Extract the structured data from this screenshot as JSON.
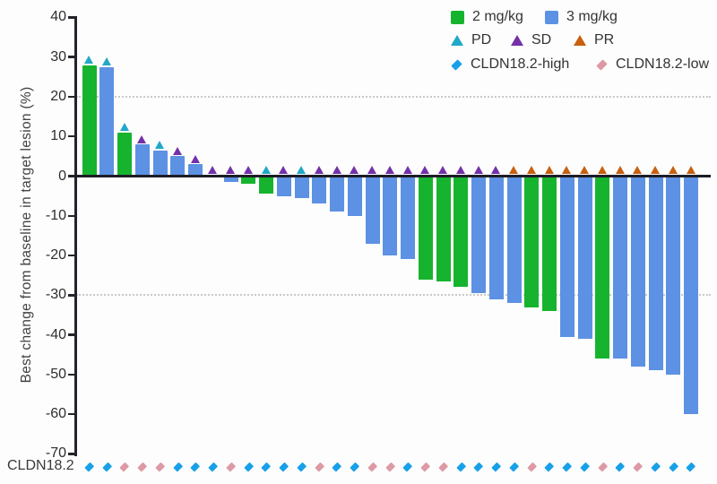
{
  "colors": {
    "dose_2mg_green": "#16b42e",
    "dose_3mg_blue": "#5d91e3",
    "pd_teal": "#20a8c8",
    "sd_purple": "#7331a8",
    "pr_orange": "#c8600f",
    "cldn_high_blue": "#18a0e8",
    "cldn_low_pink": "#dd9aa5",
    "axis": "#23232b",
    "grid": "#c9c9c9",
    "text": "#333333"
  },
  "chart_data": {
    "type": "bar",
    "subtype": "waterfall",
    "title": "",
    "xlabel": "",
    "ylabel": "Best change from baseline in target lesion (%)",
    "ylim": [
      -70,
      40
    ],
    "yticks": [
      40,
      30,
      20,
      10,
      0,
      -10,
      -20,
      -30,
      -40,
      -50,
      -60,
      -70
    ],
    "dotted_gridlines_at": [
      20,
      -30
    ],
    "legend_position": "top-right",
    "bottom_row_label": "CLDN18.2",
    "legend": {
      "rows": [
        {
          "items": [
            {
              "label": "2 mg/kg",
              "marker": "square",
              "color_key": "dose_2mg_green"
            },
            {
              "label": "3 mg/kg",
              "marker": "square",
              "color_key": "dose_3mg_blue"
            }
          ]
        },
        {
          "items": [
            {
              "label": "PD",
              "marker": "triangle",
              "color_key": "pd_teal"
            },
            {
              "label": "SD",
              "marker": "triangle",
              "color_key": "sd_purple"
            },
            {
              "label": "PR",
              "marker": "triangle",
              "color_key": "pr_orange"
            }
          ]
        },
        {
          "items": [
            {
              "label": "CLDN18.2-high",
              "marker": "diamond",
              "color_key": "cldn_high_blue"
            },
            {
              "label": "CLDN18.2-low",
              "marker": "diamond",
              "color_key": "cldn_low_pink"
            }
          ]
        }
      ]
    },
    "series": [
      {
        "name": "2 mg/kg",
        "color_key": "dose_2mg_green"
      },
      {
        "name": "3 mg/kg",
        "color_key": "dose_3mg_blue"
      }
    ],
    "patients": [
      {
        "value": 28,
        "dose": "2 mg/kg",
        "response": "PD",
        "cldn18_2": "high"
      },
      {
        "value": 27.5,
        "dose": "3 mg/kg",
        "response": "PD",
        "cldn18_2": "high"
      },
      {
        "value": 11,
        "dose": "2 mg/kg",
        "response": "PD",
        "cldn18_2": "low"
      },
      {
        "value": 8,
        "dose": "3 mg/kg",
        "response": "SD",
        "cldn18_2": "low"
      },
      {
        "value": 6.5,
        "dose": "3 mg/kg",
        "response": "PD",
        "cldn18_2": "low"
      },
      {
        "value": 5,
        "dose": "3 mg/kg",
        "response": "SD",
        "cldn18_2": "high"
      },
      {
        "value": 3,
        "dose": "3 mg/kg",
        "response": "SD",
        "cldn18_2": "high"
      },
      {
        "value": 0,
        "dose": "3 mg/kg",
        "response": "SD",
        "cldn18_2": "high"
      },
      {
        "value": -1.5,
        "dose": "3 mg/kg",
        "response": "SD",
        "cldn18_2": "low"
      },
      {
        "value": -2,
        "dose": "2 mg/kg",
        "response": "SD",
        "cldn18_2": "high"
      },
      {
        "value": -4.5,
        "dose": "2 mg/kg",
        "response": "PD",
        "cldn18_2": "high"
      },
      {
        "value": -5,
        "dose": "3 mg/kg",
        "response": "SD",
        "cldn18_2": "high"
      },
      {
        "value": -5.5,
        "dose": "3 mg/kg",
        "response": "PD",
        "cldn18_2": "high"
      },
      {
        "value": -7,
        "dose": "3 mg/kg",
        "response": "SD",
        "cldn18_2": "low"
      },
      {
        "value": -9,
        "dose": "3 mg/kg",
        "response": "SD",
        "cldn18_2": "high"
      },
      {
        "value": -10,
        "dose": "3 mg/kg",
        "response": "SD",
        "cldn18_2": "high"
      },
      {
        "value": -17,
        "dose": "3 mg/kg",
        "response": "SD",
        "cldn18_2": "low"
      },
      {
        "value": -20,
        "dose": "3 mg/kg",
        "response": "SD",
        "cldn18_2": "low"
      },
      {
        "value": -21,
        "dose": "3 mg/kg",
        "response": "SD",
        "cldn18_2": "high"
      },
      {
        "value": -26,
        "dose": "2 mg/kg",
        "response": "SD",
        "cldn18_2": "low"
      },
      {
        "value": -26.5,
        "dose": "2 mg/kg",
        "response": "SD",
        "cldn18_2": "low"
      },
      {
        "value": -28,
        "dose": "2 mg/kg",
        "response": "SD",
        "cldn18_2": "high"
      },
      {
        "value": -29.5,
        "dose": "3 mg/kg",
        "response": "SD",
        "cldn18_2": "high"
      },
      {
        "value": -31,
        "dose": "3 mg/kg",
        "response": "SD",
        "cldn18_2": "high"
      },
      {
        "value": -32,
        "dose": "3 mg/kg",
        "response": "PR",
        "cldn18_2": "high"
      },
      {
        "value": -33,
        "dose": "2 mg/kg",
        "response": "PR",
        "cldn18_2": "low"
      },
      {
        "value": -34,
        "dose": "2 mg/kg",
        "response": "PR",
        "cldn18_2": "high"
      },
      {
        "value": -40.5,
        "dose": "3 mg/kg",
        "response": "PR",
        "cldn18_2": "high"
      },
      {
        "value": -41,
        "dose": "3 mg/kg",
        "response": "PR",
        "cldn18_2": "high"
      },
      {
        "value": -46,
        "dose": "2 mg/kg",
        "response": "PR",
        "cldn18_2": "low"
      },
      {
        "value": -46,
        "dose": "3 mg/kg",
        "response": "PR",
        "cldn18_2": "high"
      },
      {
        "value": -48,
        "dose": "3 mg/kg",
        "response": "PR",
        "cldn18_2": "low"
      },
      {
        "value": -49,
        "dose": "3 mg/kg",
        "response": "PR",
        "cldn18_2": "high"
      },
      {
        "value": -50,
        "dose": "3 mg/kg",
        "response": "PR",
        "cldn18_2": "high"
      },
      {
        "value": -60,
        "dose": "3 mg/kg",
        "response": "PR",
        "cldn18_2": "high"
      }
    ]
  }
}
